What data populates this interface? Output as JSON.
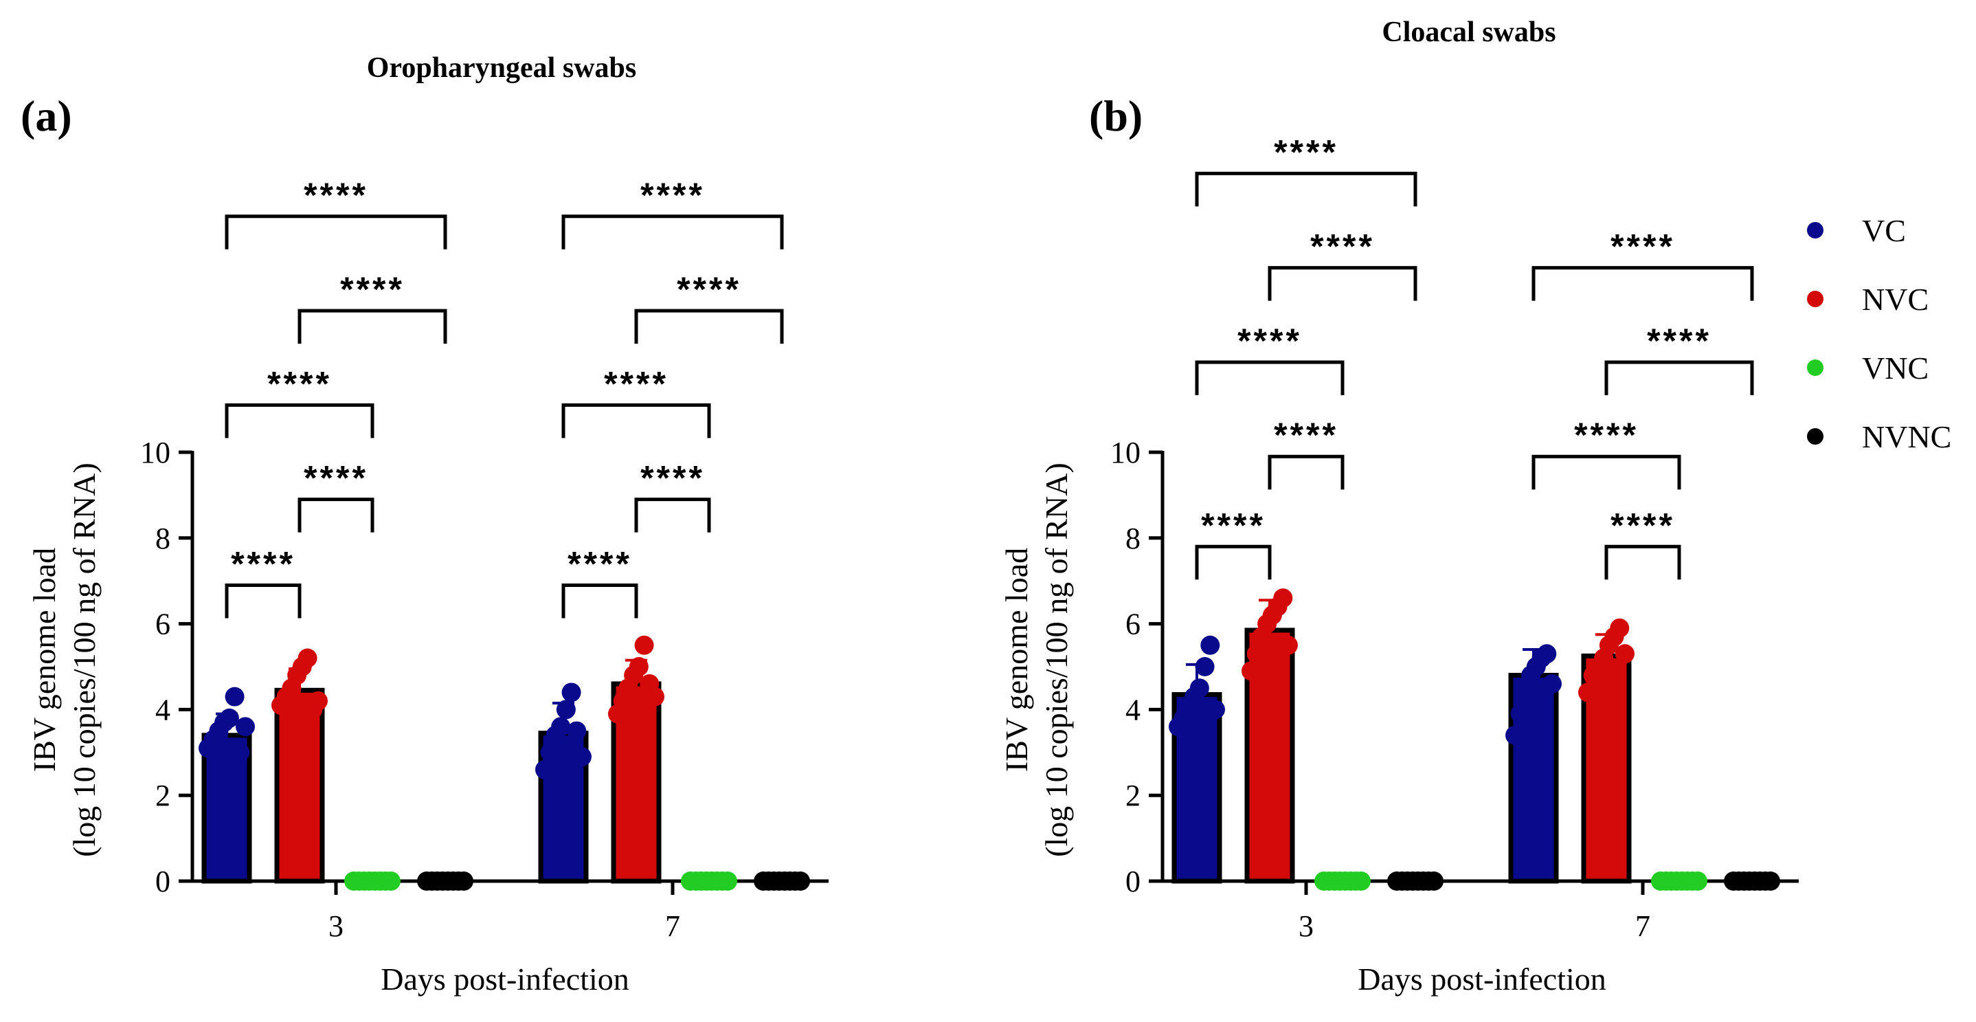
{
  "figure": {
    "legend": [
      {
        "label": "VC",
        "color": "#0a0a8c"
      },
      {
        "label": "NVC",
        "color": "#d40a0a"
      },
      {
        "label": "VNC",
        "color": "#22cc22"
      },
      {
        "label": "NVNC",
        "color": "#000000"
      }
    ]
  },
  "chart_data": [
    {
      "type": "bar",
      "panel": "(a)",
      "title": "Oropharyngeal swabs",
      "xlabel": "Days post-infection",
      "ylabel_line1": "IBV genome load",
      "ylabel_line2": "(log 10 copies/100 ng of RNA)",
      "ylim": [
        0,
        10
      ],
      "yticks": [
        "0",
        "2",
        "4",
        "6",
        "8",
        "10"
      ],
      "categories": [
        "3",
        "7"
      ],
      "series": [
        {
          "name": "VC",
          "color": "#0a0a8c",
          "values": [
            3.4,
            3.45
          ],
          "error": [
            0.5,
            0.7
          ],
          "points": [
            [
              3.1,
              3.3,
              3.5,
              3.7,
              3.8,
              4.3,
              3.0,
              3.6
            ],
            [
              2.6,
              3.0,
              3.4,
              3.6,
              4.0,
              4.4,
              3.5,
              2.9
            ]
          ]
        },
        {
          "name": "NVC",
          "color": "#d40a0a",
          "values": [
            4.45,
            4.6
          ],
          "error": [
            0.5,
            0.55
          ],
          "points": [
            [
              4.1,
              4.3,
              4.5,
              4.8,
              5.0,
              5.2,
              4.0,
              4.2
            ],
            [
              3.9,
              4.2,
              4.5,
              4.8,
              5.0,
              5.5,
              4.6,
              4.3
            ]
          ]
        },
        {
          "name": "VNC",
          "color": "#22cc22",
          "values": [
            0,
            0
          ],
          "error": [
            0,
            0
          ],
          "points": [
            [
              0,
              0,
              0,
              0,
              0,
              0,
              0,
              0
            ],
            [
              0,
              0,
              0,
              0,
              0,
              0,
              0,
              0
            ]
          ]
        },
        {
          "name": "NVNC",
          "color": "#000000",
          "values": [
            0,
            0
          ],
          "error": [
            0,
            0
          ],
          "points": [
            [
              0,
              0,
              0,
              0,
              0,
              0,
              0,
              0
            ],
            [
              0,
              0,
              0,
              0,
              0,
              0,
              0,
              0
            ]
          ]
        }
      ],
      "comparisons": [
        {
          "category": 0,
          "from": 0,
          "to": 1,
          "level": 6.9,
          "label": "****"
        },
        {
          "category": 0,
          "from": 1,
          "to": 2,
          "level": 8.9,
          "label": "****"
        },
        {
          "category": 0,
          "from": 0,
          "to": 2,
          "level": 11.1,
          "label": "****"
        },
        {
          "category": 0,
          "from": 1,
          "to": 3,
          "level": 13.3,
          "label": "****"
        },
        {
          "category": 0,
          "from": 0,
          "to": 3,
          "level": 15.5,
          "label": "****"
        },
        {
          "category": 1,
          "from": 0,
          "to": 1,
          "level": 6.9,
          "label": "****"
        },
        {
          "category": 1,
          "from": 1,
          "to": 2,
          "level": 8.9,
          "label": "****"
        },
        {
          "category": 1,
          "from": 0,
          "to": 2,
          "level": 11.1,
          "label": "****"
        },
        {
          "category": 1,
          "from": 1,
          "to": 3,
          "level": 13.3,
          "label": "****"
        },
        {
          "category": 1,
          "from": 0,
          "to": 3,
          "level": 15.5,
          "label": "****"
        }
      ]
    },
    {
      "type": "bar",
      "panel": "(b)",
      "title": "Cloacal swabs",
      "xlabel": "Days post-infection",
      "ylabel_line1": "IBV genome load",
      "ylabel_line2": "(log 10 copies/100 ng of RNA)",
      "ylim": [
        0,
        10
      ],
      "yticks": [
        "0",
        "2",
        "4",
        "6",
        "8",
        "10"
      ],
      "categories": [
        "3",
        "7"
      ],
      "series": [
        {
          "name": "VC",
          "color": "#0a0a8c",
          "values": [
            4.35,
            4.8
          ],
          "error": [
            0.7,
            0.6
          ],
          "points": [
            [
              3.6,
              3.8,
              4.1,
              4.3,
              4.5,
              5.0,
              5.5,
              4.0
            ],
            [
              3.4,
              3.9,
              4.3,
              4.8,
              5.0,
              5.2,
              5.3,
              4.6
            ]
          ]
        },
        {
          "name": "NVC",
          "color": "#d40a0a",
          "values": [
            5.85,
            5.25
          ],
          "error": [
            0.7,
            0.5
          ],
          "points": [
            [
              4.9,
              5.3,
              5.7,
              6.0,
              6.2,
              6.4,
              6.6,
              5.5
            ],
            [
              4.4,
              4.8,
              5.0,
              5.2,
              5.5,
              5.7,
              5.9,
              5.3
            ]
          ]
        },
        {
          "name": "VNC",
          "color": "#22cc22",
          "values": [
            0,
            0
          ],
          "error": [
            0,
            0
          ],
          "points": [
            [
              0,
              0,
              0,
              0,
              0,
              0,
              0,
              0
            ],
            [
              0,
              0,
              0,
              0,
              0,
              0,
              0,
              0
            ]
          ]
        },
        {
          "name": "NVNC",
          "color": "#000000",
          "values": [
            0,
            0
          ],
          "error": [
            0,
            0
          ],
          "points": [
            [
              0,
              0,
              0,
              0,
              0,
              0,
              0,
              0
            ],
            [
              0,
              0,
              0,
              0,
              0,
              0,
              0,
              0
            ]
          ]
        }
      ],
      "comparisons": [
        {
          "category": 0,
          "from": 0,
          "to": 1,
          "level": 7.8,
          "label": "****"
        },
        {
          "category": 0,
          "from": 1,
          "to": 2,
          "level": 9.9,
          "label": "****"
        },
        {
          "category": 0,
          "from": 0,
          "to": 2,
          "level": 12.1,
          "label": "****"
        },
        {
          "category": 0,
          "from": 1,
          "to": 3,
          "level": 14.3,
          "label": "****"
        },
        {
          "category": 0,
          "from": 0,
          "to": 3,
          "level": 16.5,
          "label": "****"
        },
        {
          "category": 1,
          "from": 1,
          "to": 2,
          "level": 7.8,
          "label": "****"
        },
        {
          "category": 1,
          "from": 0,
          "to": 2,
          "level": 9.9,
          "label": "****"
        },
        {
          "category": 1,
          "from": 1,
          "to": 3,
          "level": 12.1,
          "label": "****"
        },
        {
          "category": 1,
          "from": 0,
          "to": 3,
          "level": 14.3,
          "label": "****"
        }
      ]
    }
  ]
}
